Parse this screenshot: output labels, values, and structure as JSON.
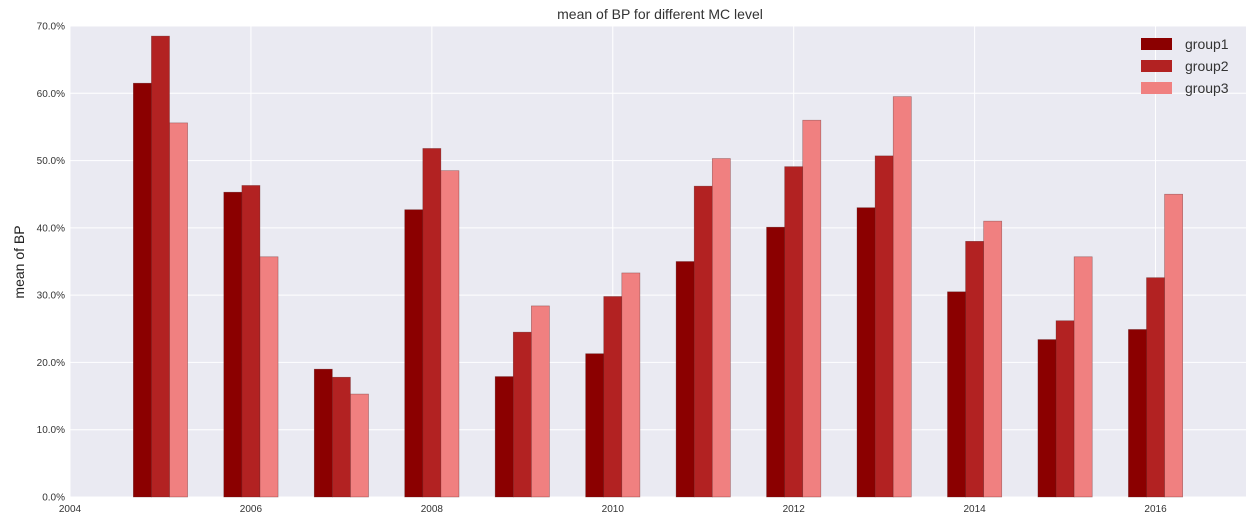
{
  "chart_data": {
    "type": "bar",
    "title": "mean of BP for different MC level",
    "xlabel": "",
    "ylabel": "mean of BP",
    "x": [
      2005,
      2006,
      2007,
      2008,
      2009,
      2010,
      2011,
      2012,
      2013,
      2014,
      2015,
      2016
    ],
    "xlim": [
      2004,
      2017
    ],
    "ylim": [
      0,
      70
    ],
    "x_ticks": [
      2004,
      2006,
      2008,
      2010,
      2012,
      2014,
      2016
    ],
    "x_tick_labels": [
      "2004",
      "2006",
      "2008",
      "2010",
      "2012",
      "2014",
      "2016"
    ],
    "y_ticks": [
      0,
      10,
      20,
      30,
      40,
      50,
      60,
      70
    ],
    "y_tick_labels": [
      "0.0%",
      "10.0%",
      "20.0%",
      "30.0%",
      "40.0%",
      "50.0%",
      "60.0%",
      "70.0%"
    ],
    "grid": true,
    "legend_position": "top-right",
    "series": [
      {
        "name": "group1",
        "color": "#8B0000",
        "values": [
          61.5,
          45.3,
          19.0,
          42.7,
          17.9,
          21.3,
          35.0,
          40.1,
          43.0,
          30.5,
          23.4,
          24.9
        ]
      },
      {
        "name": "group2",
        "color": "#B22222",
        "values": [
          68.5,
          46.3,
          17.8,
          51.8,
          24.5,
          29.8,
          46.2,
          49.1,
          50.7,
          38.0,
          26.2,
          32.6
        ]
      },
      {
        "name": "group3",
        "color": "#F08080",
        "values": [
          55.6,
          35.7,
          15.3,
          48.5,
          28.4,
          33.3,
          50.3,
          56.0,
          59.5,
          41.0,
          35.7,
          45.0
        ]
      }
    ]
  }
}
